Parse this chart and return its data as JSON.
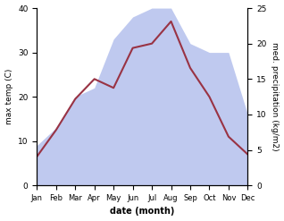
{
  "months": [
    "Jan",
    "Feb",
    "Mar",
    "Apr",
    "May",
    "Jun",
    "Jul",
    "Aug",
    "Sep",
    "Oct",
    "Nov",
    "Dec"
  ],
  "temp": [
    6.5,
    12.5,
    19.5,
    24,
    22,
    31,
    32,
    37,
    26.5,
    20,
    11,
    7
  ],
  "precip_left_scale": [
    9,
    13,
    20,
    22,
    33,
    38,
    40,
    40,
    32,
    30,
    30,
    16
  ],
  "temp_color": "#993344",
  "precip_fill_color": "#b8c4ee",
  "ylabel_left": "max temp (C)",
  "ylabel_right": "med. precipitation (kg/m2)",
  "xlabel": "date (month)",
  "ylim_left": [
    0,
    40
  ],
  "ylim_right": [
    0,
    25
  ],
  "yticks_left": [
    0,
    10,
    20,
    30,
    40
  ],
  "yticks_right": [
    0,
    5,
    10,
    15,
    20,
    25
  ],
  "bg_color": "#ffffff"
}
